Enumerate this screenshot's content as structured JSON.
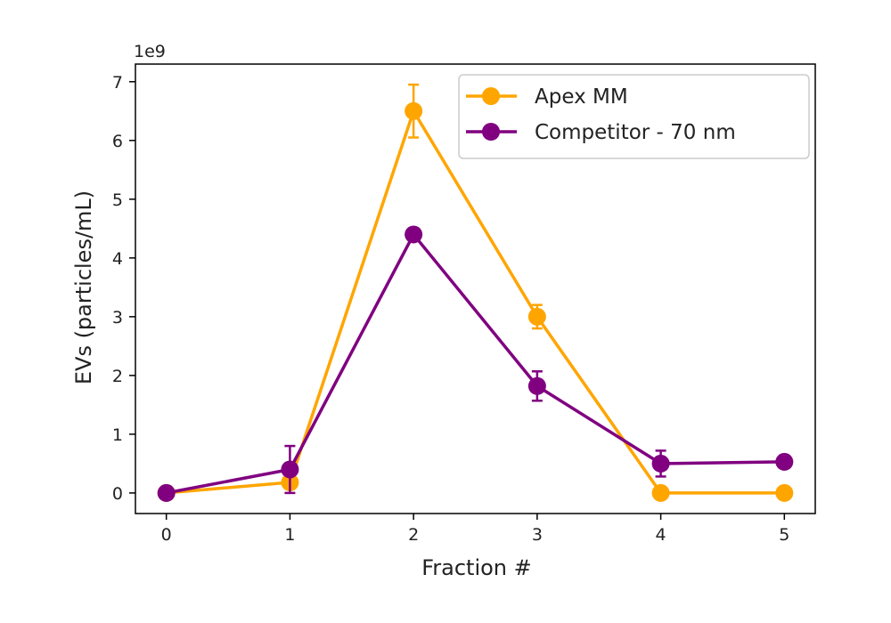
{
  "chart_data": {
    "type": "line",
    "xlabel": "Fraction #",
    "ylabel": "EVs (particles/mL)",
    "y_offset_label": "1e9",
    "y_multiplier": 1000000000.0,
    "xlim": [
      -0.25,
      5.25
    ],
    "ylim": [
      -0.35,
      7.3
    ],
    "x_ticks": [
      0,
      1,
      2,
      3,
      4,
      5
    ],
    "x_tick_labels": [
      "0",
      "1",
      "2",
      "3",
      "4",
      "5"
    ],
    "y_ticks": [
      0,
      1,
      2,
      3,
      4,
      5,
      6,
      7
    ],
    "y_tick_labels": [
      "0",
      "1",
      "2",
      "3",
      "4",
      "5",
      "6",
      "7"
    ],
    "grid": false,
    "legend_position": "top-right",
    "x": [
      0,
      1,
      2,
      3,
      4,
      5
    ],
    "series": [
      {
        "name": "Apex MM",
        "color": "#FFA500",
        "values": [
          0,
          0.18,
          6.5,
          3.0,
          0,
          0
        ],
        "errors": [
          0,
          0.1,
          0.45,
          0.2,
          0,
          0
        ]
      },
      {
        "name": "Competitor - 70 nm",
        "color": "#800080",
        "values": [
          0,
          0.4,
          4.4,
          1.82,
          0.5,
          0.53
        ],
        "errors": [
          0,
          0.4,
          0.05,
          0.25,
          0.22,
          0
        ]
      }
    ]
  }
}
